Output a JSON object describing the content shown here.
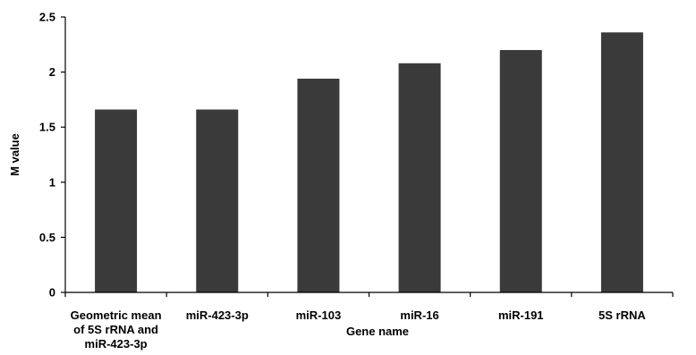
{
  "chart_data": {
    "type": "bar",
    "categories": [
      [
        "Geometric mean",
        "of 5S rRNA and",
        "miR-423-3p"
      ],
      [
        "miR-423-3p"
      ],
      [
        "miR-103"
      ],
      [
        "miR-16"
      ],
      [
        "miR-191"
      ],
      [
        "5S rRNA"
      ]
    ],
    "values": [
      1.66,
      1.66,
      1.94,
      2.08,
      2.2,
      2.36
    ],
    "xlabel": "Gene name",
    "ylabel": "M value",
    "ylim": [
      0,
      2.5
    ],
    "yticks": [
      "0",
      "0.5",
      "1",
      "1.5",
      "2",
      "2.5"
    ],
    "grid": false,
    "bar_color": "#3a3a3a"
  }
}
